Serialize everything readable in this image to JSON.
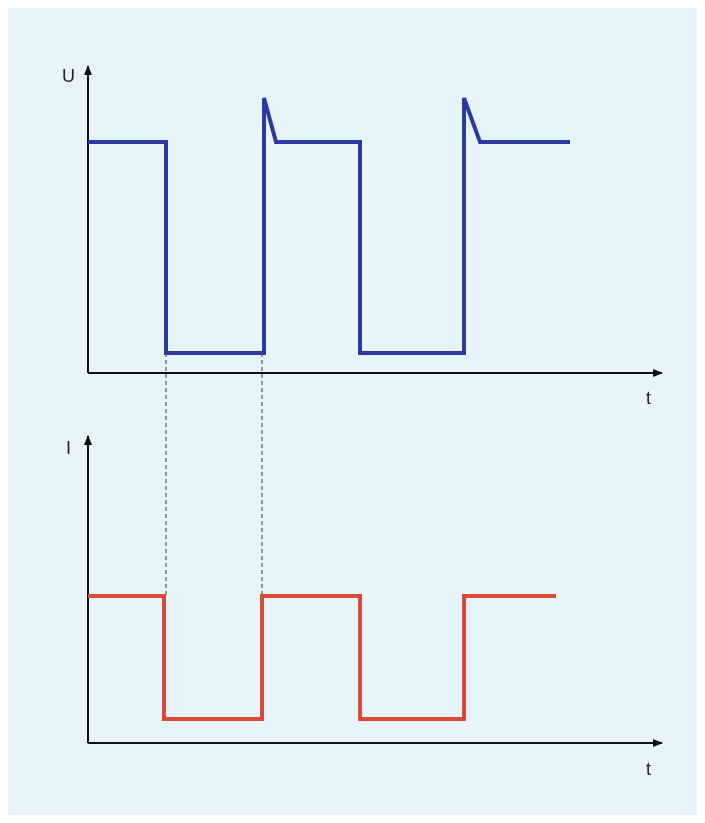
{
  "colors": {
    "background": "#e8f4fc",
    "voltage": "#2b3aa0",
    "current": "#d94a36",
    "axis": "#111111"
  },
  "top_graph": {
    "y_label": "U",
    "x_label": "t"
  },
  "bottom_graph": {
    "y_label": "I",
    "x_label": "t"
  }
}
